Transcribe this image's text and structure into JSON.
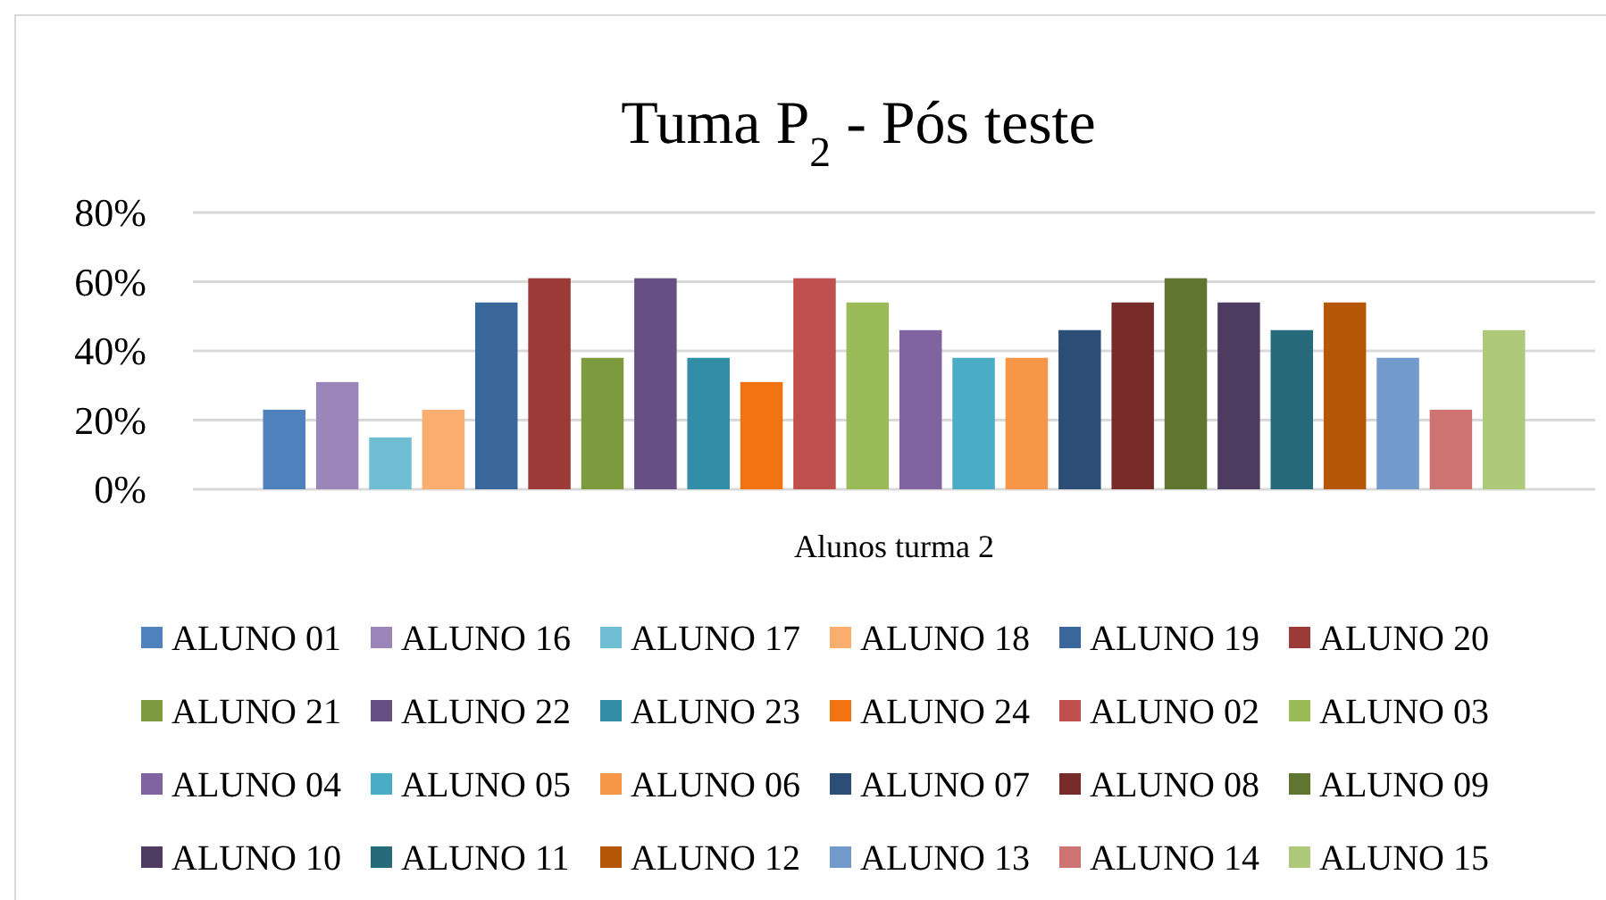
{
  "chart_data": {
    "type": "bar",
    "title": "Tuma P$_{2}$ - Pós teste",
    "xlabel": "Alunos turma 2",
    "categories": [
      null
    ],
    "ylim": [
      0,
      80
    ],
    "yticks": [
      {
        "value": 0,
        "label": "0%"
      },
      {
        "value": 20,
        "label": "20%"
      },
      {
        "value": 40,
        "label": "40%"
      },
      {
        "value": 60,
        "label": "60%"
      },
      {
        "value": 80,
        "label": "80%"
      }
    ],
    "grid": "y",
    "legend": "bottom",
    "series": [
      {
        "name": "ALUNO 01",
        "color": "#4f81bd",
        "values": [
          23
        ]
      },
      {
        "name": "ALUNO 16",
        "color": "#9c85b8",
        "values": [
          31
        ]
      },
      {
        "name": "ALUNO 17",
        "color": "#6fbed4",
        "values": [
          15
        ]
      },
      {
        "name": "ALUNO 18",
        "color": "#f9ad6f",
        "values": [
          23
        ]
      },
      {
        "name": "ALUNO 19",
        "color": "#3a679b",
        "values": [
          54
        ]
      },
      {
        "name": "ALUNO 20",
        "color": "#9c3a38",
        "values": [
          61
        ]
      },
      {
        "name": "ALUNO 21",
        "color": "#7d9a3f",
        "values": [
          38
        ]
      },
      {
        "name": "ALUNO 22",
        "color": "#654f83",
        "values": [
          61
        ]
      },
      {
        "name": "ALUNO 23",
        "color": "#328ea6",
        "values": [
          38
        ]
      },
      {
        "name": "ALUNO 24",
        "color": "#f17311",
        "values": [
          31
        ]
      },
      {
        "name": "ALUNO 02",
        "color": "#c0504d",
        "values": [
          61
        ]
      },
      {
        "name": "ALUNO 03",
        "color": "#9bbb59",
        "values": [
          54
        ]
      },
      {
        "name": "ALUNO 04",
        "color": "#8064a2",
        "values": [
          46
        ]
      },
      {
        "name": "ALUNO 05",
        "color": "#4bacc6",
        "values": [
          38
        ]
      },
      {
        "name": "ALUNO 06",
        "color": "#f79646",
        "values": [
          38
        ]
      },
      {
        "name": "ALUNO 07",
        "color": "#2c4d75",
        "values": [
          46
        ]
      },
      {
        "name": "ALUNO 08",
        "color": "#772c2a",
        "values": [
          54
        ]
      },
      {
        "name": "ALUNO 09",
        "color": "#5f7530",
        "values": [
          61
        ]
      },
      {
        "name": "ALUNO 10",
        "color": "#4d3b62",
        "values": [
          54
        ]
      },
      {
        "name": "ALUNO 11",
        "color": "#276a7c",
        "values": [
          46
        ]
      },
      {
        "name": "ALUNO 12",
        "color": "#b65708",
        "values": [
          54
        ]
      },
      {
        "name": "ALUNO 13",
        "color": "#729aca",
        "values": [
          38
        ]
      },
      {
        "name": "ALUNO 14",
        "color": "#cd7371",
        "values": [
          23
        ]
      },
      {
        "name": "ALUNO 15",
        "color": "#afc97a",
        "values": [
          46
        ]
      }
    ]
  }
}
